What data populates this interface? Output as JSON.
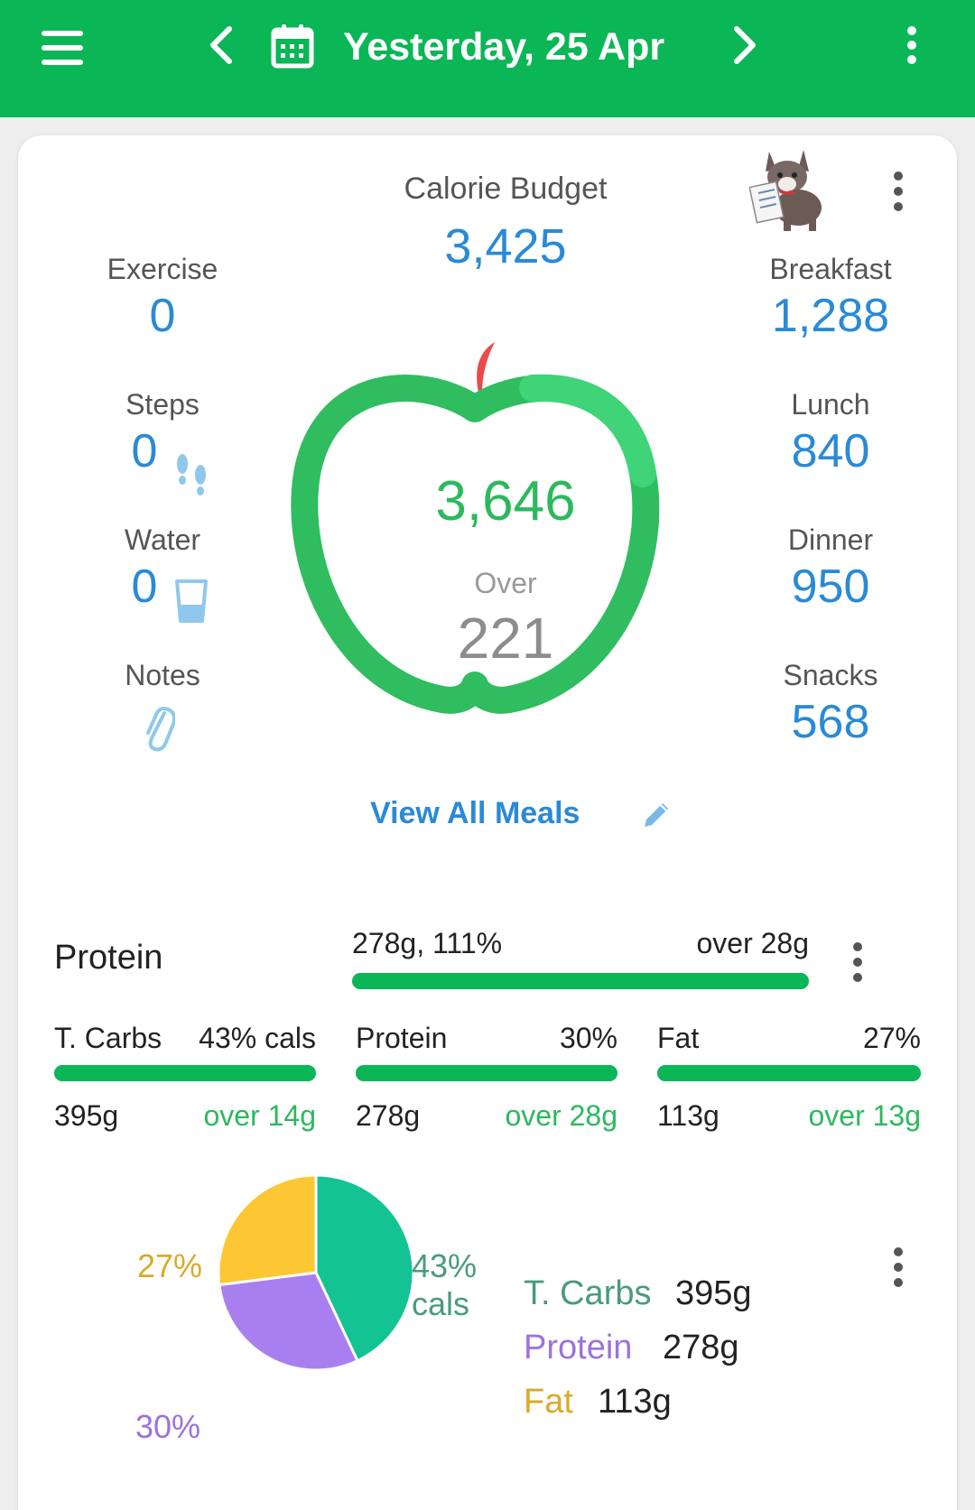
{
  "header": {
    "title": "Yesterday, 25 Apr",
    "background": "#0bb656"
  },
  "summary": {
    "budget_label": "Calorie Budget",
    "budget_value": "3,425",
    "eaten_value": "3,646",
    "over_label": "Over",
    "over_value": "221",
    "view_all_label": "View All Meals",
    "left": [
      {
        "label": "Exercise",
        "value": "0"
      },
      {
        "label": "Steps",
        "value": "0"
      },
      {
        "label": "Water",
        "value": "0"
      },
      {
        "label": "Notes",
        "value": ""
      }
    ],
    "right": [
      {
        "label": "Breakfast",
        "value": "1,288"
      },
      {
        "label": "Lunch",
        "value": "840"
      },
      {
        "label": "Dinner",
        "value": "950"
      },
      {
        "label": "Snacks",
        "value": "568"
      }
    ],
    "apple_progress": 1.0
  },
  "protein_goal": {
    "title": "Protein",
    "amount": "278g, 111%",
    "over": "over 28g",
    "progress": 1.0
  },
  "macros": [
    {
      "label": "T. Carbs",
      "pct": "43% cals",
      "grams": "395g",
      "over": "over 14g",
      "progress": 1.0
    },
    {
      "label": "Protein",
      "pct": "30%",
      "grams": "278g",
      "over": "over 28g",
      "progress": 1.0
    },
    {
      "label": "Fat",
      "pct": "27%",
      "grams": "113g",
      "over": "over 13g",
      "progress": 1.0
    }
  ],
  "chart_data": {
    "type": "pie",
    "slices": [
      {
        "label": "T. Carbs",
        "value": 43,
        "color": "#13c393",
        "pct_text": "43%",
        "pct_sub": "cals"
      },
      {
        "label": "Protein",
        "value": 30,
        "color": "#a97ff0",
        "pct_text": "30%"
      },
      {
        "label": "Fat",
        "value": 27,
        "color": "#fdc733",
        "pct_text": "27%"
      }
    ],
    "legend": [
      {
        "name": "T. Carbs",
        "grams": "395g",
        "color": "#4a9b7a"
      },
      {
        "name": "Protein",
        "grams": "278g",
        "color": "#9b72e0"
      },
      {
        "name": "Fat",
        "grams": "113g",
        "color": "#d8ab2a"
      }
    ]
  }
}
